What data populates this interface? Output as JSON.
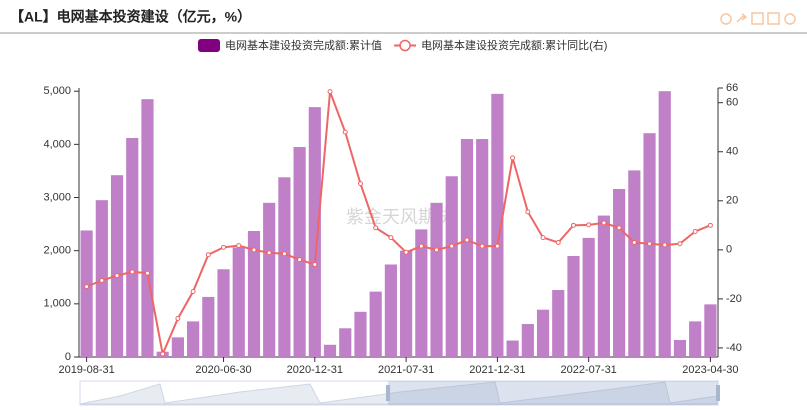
{
  "title": "【AL】电网基本投资建设（亿元，%）",
  "chart_data": {
    "type": "bar-line",
    "watermark": "紫金天风期货",
    "categories": [
      "2019-08-31",
      null,
      null,
      null,
      null,
      null,
      null,
      null,
      null,
      "2020-06-30",
      null,
      null,
      null,
      null,
      null,
      "2020-12-31",
      null,
      null,
      null,
      null,
      null,
      "2021-07-31",
      null,
      null,
      null,
      null,
      null,
      "2021-12-31",
      null,
      null,
      null,
      null,
      null,
      "2022-07-31",
      null,
      null,
      null,
      null,
      null,
      null,
      null,
      "2023-04-30"
    ],
    "series": [
      {
        "name": "电网基本建设投资完成额:累计值",
        "type": "bar",
        "color": "#bf80c8",
        "legend_color": "#800080",
        "values": [
          2380,
          2950,
          3420,
          4120,
          4850,
          100,
          370,
          670,
          1130,
          1650,
          2060,
          2370,
          2900,
          3380,
          3950,
          4700,
          230,
          540,
          850,
          1230,
          1740,
          2000,
          2400,
          2900,
          3400,
          4100,
          4100,
          4950,
          310,
          620,
          890,
          1260,
          1900,
          2240,
          2660,
          3160,
          3510,
          4210,
          5000,
          320,
          670,
          990
        ]
      },
      {
        "name": "电网基本建设投资完成额:累计同比(右)",
        "type": "line",
        "axis": "y2",
        "color": "#ee6666",
        "values": [
          -15,
          -12.5,
          -10.5,
          -9,
          -9.5,
          -42.5,
          -28,
          -17,
          -2,
          1,
          1.7,
          0,
          -1.2,
          -1.6,
          -4,
          -6,
          64.5,
          48,
          27,
          9,
          5,
          -1,
          1.5,
          0,
          1.5,
          4,
          1.5,
          1.5,
          37.5,
          15.5,
          5,
          3,
          10,
          10.2,
          11,
          9,
          3,
          2.5,
          2,
          2.5,
          7.5,
          10
        ]
      }
    ],
    "ylim": [
      0,
      5060
    ],
    "yticks": [
      0,
      {
        "value": 1000,
        "label": "1,000"
      },
      {
        "value": 2000,
        "label": "2,000"
      },
      {
        "value": 3000,
        "label": "3,000"
      },
      {
        "value": 4000,
        "label": "4,000"
      },
      {
        "value": 5000,
        "label": "5,000"
      }
    ],
    "y2lim": [
      -43.7,
      66
    ],
    "y2ticks": [
      -40,
      -20,
      0,
      20,
      40,
      60,
      66
    ]
  }
}
